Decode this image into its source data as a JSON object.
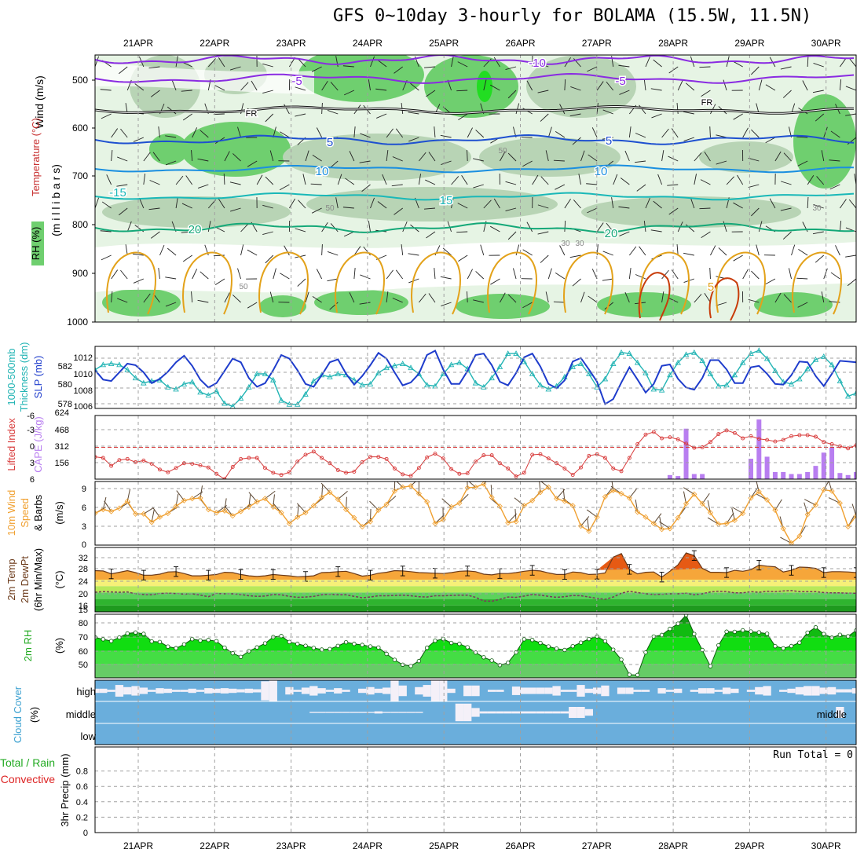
{
  "title": "GFS 0~10day 3-hourly for BOLAMA (15.5W, 11.5N)",
  "dates": [
    "21APR",
    "22APR",
    "23APR",
    "24APR",
    "25APR",
    "26APR",
    "27APR",
    "28APR",
    "29APR",
    "30APR"
  ],
  "colors": {
    "rh_light": "#e6f4e4",
    "rh_mid": "#b8d4b5",
    "rh_dark": "#6fcf6f",
    "rh_bright": "#22dd22",
    "temp_purple": "#8a2be2",
    "temp_blue": "#1e50d0",
    "temp_sky": "#1a8fe0",
    "temp_teal": "#1ab8b8",
    "temp_green": "#14a878",
    "temp_orange": "#e3a21a",
    "temp_red": "#c83c0a",
    "slp": "#1e3ccc",
    "thickness": "#22b4b4",
    "lifted": "#d83a3a",
    "cape": "#b87ef0",
    "wind": "#f0a030",
    "cloud": "#6aaedc",
    "cloud_white": "#f4f0f8"
  },
  "charts": [
    {
      "id": "profile",
      "type": "heatmap",
      "side_labels": [
        "Wind (m/s)",
        "Temperature (°C)",
        "RH (%)",
        "(m i l l i b a r s)"
      ],
      "y_ticks": [
        "500",
        "600",
        "700",
        "800",
        "900",
        "1000"
      ],
      "isotherm_labels": [
        "-10",
        "-5",
        "-5",
        "FR",
        "FR",
        "5",
        "5",
        "10",
        "10",
        "-15",
        "15",
        "20",
        "20",
        "5"
      ],
      "rh_labels": [
        "30",
        "50",
        "50",
        "30",
        "50",
        "30"
      ]
    },
    {
      "id": "slp_thickness",
      "type": "line",
      "left_labels": [
        "1000-500mb",
        "Thickness (dm)"
      ],
      "right_label": "SLP (mb)",
      "left_ticks": [
        "582",
        "580",
        "578"
      ],
      "right_ticks": [
        "1012",
        "1010",
        "1008",
        "1006"
      ],
      "thickness_range": [
        577.2,
        583.3
      ],
      "slp_range": [
        1005.2,
        1013.8
      ],
      "slp": [
        1010.5,
        1009.2,
        1009.0,
        1010.2,
        1011.4,
        1011.2,
        1010.2,
        1008.7,
        1009.3,
        1010.3,
        1011.6,
        1012.5,
        1011.1,
        1009.2,
        1008.1,
        1008.7,
        1010.4,
        1012.1,
        1011.6,
        1009.4,
        1008.2,
        1008.7,
        1010.5,
        1012.6,
        1012.1,
        1010.5,
        1008.6,
        1008.2,
        1009.8,
        1011.6,
        1012.0,
        1010.0,
        1008.5,
        1009.7,
        1011.2,
        1012.9,
        1012.1,
        1010.2,
        1008.4,
        1008.8,
        1010.0,
        1012.6,
        1013.2,
        1010.6,
        1008.6,
        1008.6,
        1010.4,
        1012.6,
        1012.8,
        1011.2,
        1008.9,
        1008.4,
        1010.1,
        1012.3,
        1012.8,
        1011.0,
        1008.6,
        1008.0,
        1009.1,
        1011.7,
        1012.2,
        1010.6,
        1008.9,
        1005.8,
        1006.5,
        1008.8,
        1010.9,
        1009.2,
        1007.4,
        1008.6,
        1011.1,
        1011.3,
        1009.3,
        1008.1,
        1007.8,
        1009.4,
        1011.9,
        1011.9,
        1010.6,
        1008.7,
        1008.7,
        1010.9,
        1011.1,
        1010.0,
        1008.6,
        1008.5,
        1009.8,
        1011.7,
        1011.6,
        1009.7,
        1008.3,
        1010.0,
        1011.8,
        1011.7,
        1011.6
      ],
      "thickness": [
        581.0,
        581.5,
        581.6,
        581.5,
        581.0,
        580.2,
        579.7,
        579.9,
        580.0,
        579.3,
        579.1,
        579.6,
        579.8,
        578.8,
        578.5,
        578.9,
        577.7,
        577.4,
        578.2,
        579.3,
        580.6,
        580.6,
        580.0,
        578.0,
        577.6,
        577.6,
        578.6,
        579.9,
        580.5,
        580.3,
        580.6,
        580.5,
        580.0,
        579.5,
        579.6,
        580.7,
        581.2,
        581.4,
        581.6,
        581.2,
        580.6,
        579.5,
        579.4,
        580.6,
        581.5,
        581.7,
        581.1,
        579.7,
        579.3,
        580.2,
        581.3,
        582.6,
        582.6,
        581.8,
        580.6,
        579.5,
        579.1,
        579.4,
        580.3,
        581.3,
        581.6,
        580.6,
        579.3,
        580.1,
        581.6,
        582.7,
        582.6,
        581.7,
        580.7,
        579.1,
        579.0,
        580.5,
        581.7,
        582.5,
        582.7,
        581.9,
        580.6,
        579.4,
        579.5,
        580.5,
        581.7,
        582.6,
        582.9,
        582.1,
        580.9,
        579.8,
        579.6,
        580.1,
        581.1,
        582.0,
        582.3,
        581.5,
        579.9,
        578.4,
        578.7
      ]
    },
    {
      "id": "lifted_cape",
      "type": "bar",
      "left_label": "Lifted Index",
      "right_label": "CAPE (J/kg)",
      "left_ticks": [
        "-6",
        "-3",
        "0",
        "3",
        "6"
      ],
      "right_ticks": [
        "624",
        "468",
        "312",
        "156"
      ],
      "lifted_range": [
        -6,
        6
      ],
      "cape_range": [
        0,
        624
      ],
      "lifted": [
        1.8,
        2.0,
        3.5,
        2.4,
        2.2,
        2.8,
        2.5,
        3.1,
        4.2,
        4.7,
        3.9,
        3.0,
        3.1,
        3.4,
        3.8,
        5.0,
        6.0,
        3.7,
        2.2,
        2.0,
        2.0,
        3.9,
        4.8,
        5.2,
        4.7,
        2.7,
        1.4,
        0.8,
        2.0,
        3.0,
        4.3,
        4.8,
        4.6,
        2.8,
        1.8,
        1.8,
        2.2,
        4.0,
        5.1,
        5.4,
        3.9,
        1.9,
        1.2,
        2.1,
        4.1,
        5.0,
        4.9,
        2.7,
        1.5,
        1.5,
        3.0,
        4.0,
        5.5,
        4.8,
        1.4,
        1.3,
        2.1,
        3.0,
        4.0,
        5.2,
        3.8,
        1.6,
        1.3,
        2.0,
        4.0,
        4.5,
        2.0,
        -0.6,
        -2.4,
        -2.9,
        -1.7,
        -1.9,
        -1.5,
        -0.7,
        0.1,
        0.0,
        -1.0,
        -2.5,
        -3.2,
        -2.7,
        -1.7,
        -2.1,
        -1.6,
        -1.4,
        -1.1,
        -1.4,
        -2.1,
        -2.3,
        -2.3,
        -2.0,
        -1.0,
        -0.6,
        -0.2,
        0.2,
        -0.4
      ],
      "cape": [
        0,
        0,
        0,
        0,
        0,
        0,
        0,
        0,
        0,
        0,
        0,
        0,
        0,
        0,
        0,
        0,
        0,
        0,
        0,
        0,
        0,
        0,
        0,
        0,
        0,
        0,
        0,
        0,
        0,
        0,
        0,
        0,
        0,
        0,
        0,
        0,
        0,
        0,
        0,
        0,
        0,
        0,
        0,
        0,
        0,
        0,
        0,
        0,
        0,
        0,
        0,
        0,
        0,
        0,
        0,
        0,
        0,
        0,
        0,
        0,
        0,
        0,
        0,
        0,
        0,
        0,
        0,
        0,
        0,
        0,
        0,
        40,
        30,
        495,
        50,
        50,
        0,
        0,
        0,
        0,
        0,
        200,
        585,
        220,
        70,
        70,
        50,
        50,
        70,
        130,
        260,
        310,
        60,
        40,
        70
      ]
    },
    {
      "id": "wind10m",
      "type": "line",
      "left_labels": [
        "10m Wind",
        "Speed",
        "& Barbs"
      ],
      "unit": "(m/s)",
      "y_ticks": [
        "9",
        "6",
        "3",
        "0"
      ],
      "y_range": [
        0,
        10
      ],
      "speed": [
        5.0,
        5.6,
        5.3,
        5.8,
        6.9,
        4.9,
        4.9,
        3.6,
        4.4,
        5.0,
        6.1,
        7.0,
        7.3,
        7.4,
        5.6,
        5.1,
        5.4,
        4.6,
        5.3,
        6.0,
        6.8,
        7.3,
        6.0,
        5.1,
        3.4,
        4.4,
        5.1,
        6.2,
        7.5,
        8.3,
        7.2,
        5.6,
        4.3,
        2.9,
        3.7,
        5.5,
        6.4,
        8.5,
        9.1,
        9.3,
        8.1,
        6.8,
        3.4,
        4.0,
        6.0,
        6.6,
        9.0,
        9.1,
        9.6,
        7.5,
        6.1,
        3.5,
        3.7,
        6.2,
        7.0,
        8.3,
        9.1,
        7.3,
        6.9,
        6.2,
        3.0,
        2.2,
        4.4,
        7.6,
        8.6,
        8.1,
        7.4,
        5.2,
        4.4,
        3.4,
        2.5,
        2.6,
        4.3,
        6.5,
        8.0,
        6.5,
        5.1,
        3.3,
        3.4,
        3.9,
        5.0,
        7.4,
        8.4,
        7.1,
        5.5,
        2.6,
        0.3,
        1.4,
        4.8,
        6.3,
        8.7,
        8.5,
        6.6,
        2.9,
        4.6
      ]
    },
    {
      "id": "temp2m",
      "type": "area",
      "left_labels": [
        "2m Temp",
        "2m DewPt",
        "(6hr Min/Max)"
      ],
      "unit": "(°C)",
      "y_ticks": [
        "32",
        "28",
        "24",
        "20",
        "16",
        "15"
      ],
      "y_range": [
        14,
        34
      ],
      "temp": [
        26.8,
        26.7,
        25.8,
        26.3,
        26.8,
        26.2,
        25.4,
        25.4,
        25.7,
        26.4,
        26.5,
        25.9,
        25.2,
        25.2,
        25.4,
        25.6,
        26.3,
        26.2,
        25.6,
        25.2,
        25.0,
        25.2,
        25.6,
        25.4,
        25.2,
        24.9,
        25.0,
        25.2,
        26.2,
        26.3,
        26.5,
        26.6,
        25.9,
        25.1,
        25.4,
        26.0,
        26.3,
        26.8,
        26.7,
        26.5,
        26.2,
        26.1,
        26.0,
        25.9,
        26.2,
        26.6,
        26.7,
        26.5,
        25.7,
        25.5,
        25.9,
        25.9,
        26.2,
        26.6,
        26.9,
        26.7,
        26.1,
        25.6,
        25.6,
        26.4,
        26.2,
        25.6,
        25.7,
        26.1,
        31.0,
        32.1,
        27.2,
        25.8,
        26.3,
        26.4,
        24.8,
        26.6,
        28.6,
        32.3,
        31.5,
        27.5,
        26.3,
        26.3,
        26.2,
        26.9,
        26.6,
        27.1,
        28.5,
        28.2,
        28.0,
        26.4,
        26.9,
        27.9,
        27.8,
        27.5,
        26.2,
        26.5,
        26.5,
        26.4,
        26.2
      ],
      "dewpoint": [
        20.1,
        20.3,
        20.2,
        20.1,
        20.2,
        19.6,
        19.4,
        19.3,
        19.7,
        19.8,
        19.7,
        19.5,
        19.6,
        19.2,
        18.7,
        19.7,
        19.6,
        19.6,
        19.4,
        19.0,
        18.8,
        18.9,
        19.4,
        19.3,
        18.8,
        18.5,
        18.6,
        18.8,
        19.3,
        19.5,
        19.3,
        19.3,
        18.8,
        18.4,
        18.6,
        19.0,
        19.0,
        19.1,
        19.2,
        19.0,
        18.7,
        18.6,
        19.0,
        19.0,
        19.1,
        19.2,
        19.2,
        18.5,
        17.4,
        17.3,
        17.9,
        18.6,
        18.5,
        18.9,
        19.4,
        19.2,
        18.8,
        18.5,
        18.7,
        19.1,
        19.0,
        18.6,
        18.2,
        17.9,
        18.6,
        19.8,
        20.4,
        20.0,
        19.6,
        19.4,
        19.5,
        19.6,
        19.6,
        19.8,
        19.3,
        19.6,
        20.2,
        20.4,
        20.3,
        19.9,
        19.9,
        20.3,
        20.1,
        20.4,
        20.3,
        20.5,
        20.6,
        20.3,
        20.3,
        20.3,
        20.0,
        19.9,
        19.9,
        19.8,
        19.8
      ]
    },
    {
      "id": "rh2m",
      "type": "area",
      "left_label": "2m RH",
      "unit": "(%)",
      "y_ticks": [
        "80",
        "70",
        "60",
        "50"
      ],
      "y_range": [
        40,
        87
      ],
      "rh": [
        69.9,
        68.5,
        67.2,
        69.8,
        72.8,
        73.5,
        72.5,
        66.9,
        66.5,
        63.1,
        61.9,
        64.7,
        68.6,
        67.6,
        68.0,
        67.1,
        62.3,
        58.2,
        55.5,
        59.7,
        62.5,
        65.5,
        70.1,
        70.9,
        66.5,
        65.1,
        63.7,
        62.1,
        60.9,
        61.3,
        63.6,
        66.3,
        65.1,
        64.3,
        63.2,
        62.4,
        57.7,
        53.3,
        49.7,
        48.8,
        52.4,
        62.2,
        67.4,
        68.7,
        65.8,
        65.1,
        62.6,
        58.7,
        55.2,
        52.8,
        49.4,
        51.1,
        58.8,
        68.5,
        68.0,
        65.8,
        63.2,
        61.6,
        60.6,
        63.4,
        66.0,
        68.7,
        70.6,
        67.1,
        60.8,
        53.4,
        42.3,
        42.1,
        58.8,
        70.5,
        71.7,
        76.2,
        80.0,
        86.4,
        72.4,
        60.6,
        48.6,
        64.0,
        74.1,
        74.0,
        75.1,
        74.2,
        73.6,
        72.6,
        63.4,
        61.8,
        63.5,
        66.0,
        73.4,
        77.3,
        72.4,
        69.7,
        71.8,
        70.7,
        75.0
      ]
    },
    {
      "id": "cloud",
      "type": "bar",
      "left_labels": [
        "Cloud Cover",
        "(%)"
      ],
      "levels": [
        "high",
        "middle",
        "low"
      ],
      "high": [
        20,
        20,
        10,
        55,
        35,
        45,
        30,
        10,
        25,
        20,
        10,
        10,
        20,
        10,
        25,
        20,
        25,
        20,
        15,
        20,
        15,
        90,
        100,
        0,
        35,
        10,
        30,
        45,
        25,
        10,
        25,
        10,
        0,
        20,
        35,
        20,
        30,
        100,
        50,
        0,
        35,
        55,
        100,
        100,
        20,
        0,
        50,
        50,
        0,
        10,
        10,
        0,
        40,
        30,
        30,
        30,
        30,
        45,
        10,
        10,
        55,
        20,
        30,
        50,
        0,
        30,
        30,
        10,
        10,
        0,
        25,
        10,
        20,
        0,
        10,
        25,
        25,
        10,
        30,
        20,
        0,
        10,
        35,
        45,
        0,
        10,
        20,
        35,
        45,
        45,
        30,
        35,
        15,
        15,
        25
      ],
      "middle": [
        0,
        0,
        0,
        0,
        0,
        0,
        0,
        0,
        0,
        0,
        0,
        0,
        0,
        0,
        0,
        0,
        0,
        0,
        0,
        0,
        0,
        0,
        0,
        0,
        0,
        0,
        0,
        5,
        5,
        5,
        5,
        5,
        5,
        5,
        5,
        10,
        5,
        5,
        5,
        5,
        5,
        0,
        0,
        0,
        0,
        80,
        80,
        40,
        10,
        10,
        10,
        10,
        10,
        10,
        10,
        10,
        10,
        10,
        10,
        50,
        50,
        30,
        0,
        0,
        0,
        0,
        0,
        0,
        0,
        0,
        0,
        0,
        0,
        0,
        0,
        0,
        0,
        0,
        0,
        0,
        0,
        0,
        0,
        0,
        0,
        0,
        0,
        0,
        0,
        0,
        0,
        0,
        50,
        0,
        0
      ],
      "low": [
        0,
        0,
        0,
        0,
        0,
        0,
        0,
        0,
        0,
        0,
        0,
        0,
        0,
        0,
        0,
        0,
        0,
        0,
        0,
        0,
        0,
        0,
        0,
        0,
        0,
        0,
        0,
        0,
        0,
        0,
        0,
        0,
        0,
        0,
        0,
        0,
        0,
        0,
        0,
        0,
        0,
        0,
        0,
        0,
        0,
        0,
        0,
        0,
        0,
        0,
        0,
        0,
        0,
        0,
        0,
        0,
        0,
        0,
        0,
        0,
        0,
        0,
        0,
        0,
        0,
        0,
        0,
        0,
        0,
        0,
        0,
        0,
        0,
        0,
        0,
        0,
        0,
        0,
        0,
        0,
        0,
        0,
        0,
        0,
        0,
        0,
        0,
        0,
        0,
        0,
        0,
        0,
        0,
        0,
        0
      ]
    },
    {
      "id": "precip",
      "type": "bar",
      "left_labels": [
        "Total / Rain",
        "Convective",
        "3hr Precip (mm)"
      ],
      "y_ticks": [
        "0.8",
        "0.6",
        "0.4",
        "0.2",
        "0"
      ],
      "y_range": [
        0,
        1.0
      ],
      "run_total": "Run Total = 0",
      "total": [
        0,
        0,
        0,
        0,
        0,
        0,
        0,
        0,
        0,
        0,
        0,
        0,
        0,
        0,
        0,
        0,
        0,
        0,
        0,
        0,
        0,
        0,
        0,
        0,
        0,
        0,
        0,
        0,
        0,
        0,
        0,
        0,
        0,
        0,
        0,
        0,
        0,
        0,
        0,
        0,
        0,
        0,
        0,
        0,
        0,
        0,
        0,
        0,
        0,
        0,
        0,
        0,
        0,
        0,
        0,
        0,
        0,
        0,
        0,
        0,
        0,
        0,
        0,
        0,
        0,
        0,
        0,
        0,
        0,
        0,
        0,
        0,
        0,
        0,
        0,
        0,
        0,
        0,
        0,
        0,
        0,
        0,
        0,
        0,
        0,
        0,
        0,
        0,
        0,
        0,
        0,
        0,
        0,
        0,
        0
      ],
      "convective": [
        0,
        0,
        0,
        0,
        0,
        0,
        0,
        0,
        0,
        0,
        0,
        0,
        0,
        0,
        0,
        0,
        0,
        0,
        0,
        0,
        0,
        0,
        0,
        0,
        0,
        0,
        0,
        0,
        0,
        0,
        0,
        0,
        0,
        0,
        0,
        0,
        0,
        0,
        0,
        0,
        0,
        0,
        0,
        0,
        0,
        0,
        0,
        0,
        0,
        0,
        0,
        0,
        0,
        0,
        0,
        0,
        0,
        0,
        0,
        0,
        0,
        0,
        0,
        0,
        0,
        0,
        0,
        0,
        0,
        0,
        0,
        0,
        0,
        0,
        0,
        0,
        0,
        0,
        0,
        0,
        0,
        0,
        0,
        0,
        0,
        0,
        0,
        0,
        0,
        0,
        0,
        0,
        0,
        0,
        0
      ]
    }
  ]
}
